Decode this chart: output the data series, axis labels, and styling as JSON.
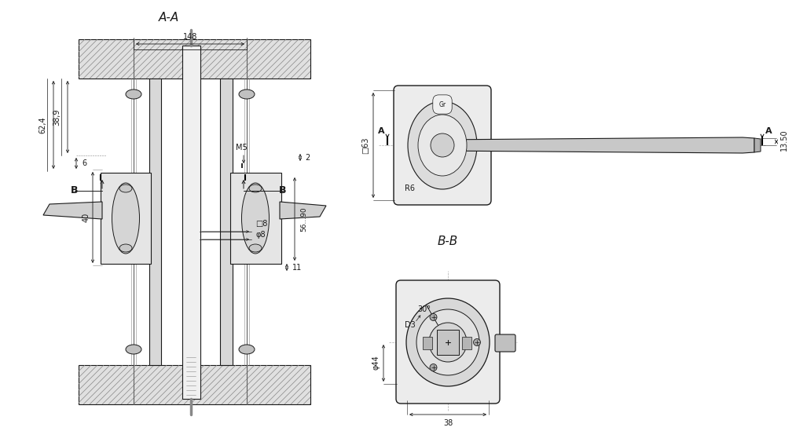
{
  "bg_color": "#ffffff",
  "line_color": "#1a1a1a",
  "gray1": "#e8e8e8",
  "gray2": "#d0d0d0",
  "gray3": "#b8b8b8",
  "gray4": "#a0a0a0",
  "hatch_bg": "#e0e0e0",
  "title_AA": "A-A",
  "title_BB": "B-B",
  "dim_148": "148",
  "dim_62_4": "62,4",
  "dim_38_9": "38,9",
  "dim_6": "6",
  "dim_2": "2",
  "dim_M5": "M5",
  "dim_B": "B",
  "dim_40": "40",
  "dim_sq8": "□8",
  "dim_phi8": "φ8",
  "dim_11": "11",
  "dim_56_90": "56...90",
  "dim_63": "□63",
  "dim_13_50": "13.50",
  "dim_R6": "R6",
  "dim_A": "A",
  "dim_30": "30°",
  "dim_D3": "D3",
  "dim_phi44": "φ44",
  "dim_38": "38",
  "dim_Gr": "Gr"
}
